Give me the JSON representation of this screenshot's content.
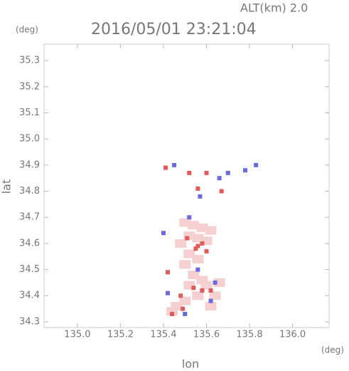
{
  "chart_data": {
    "type": "scatter",
    "altitude_label": "ALT(km) 2.0",
    "title": "2016/05/01 23:21:04",
    "y_unit": "(deg)",
    "x_unit": "(deg)",
    "x_label": "lon",
    "y_label": "lat",
    "xlim": [
      134.845,
      136.17
    ],
    "ylim": [
      34.278,
      35.363
    ],
    "xticks": [
      {
        "value": 135.0,
        "label": "135.0"
      },
      135.2,
      135.4,
      135.6,
      135.8,
      {
        "value": 136.0,
        "label": "136.0"
      }
    ],
    "yticks": [
      34.3,
      34.4,
      34.5,
      34.6,
      34.7,
      34.8,
      34.9,
      {
        "value": 35.0,
        "label": "35.0"
      },
      35.1,
      35.2,
      35.3
    ],
    "series": [
      {
        "color": "#f6d0d0",
        "x": [
          135.5,
          135.54,
          135.58,
          135.62,
          135.52,
          135.56,
          135.6,
          135.48,
          135.52,
          135.56,
          135.5,
          135.54,
          135.58,
          135.6,
          135.52,
          135.56,
          135.64,
          135.62,
          135.66,
          135.5,
          135.46,
          135.44
        ],
        "y": [
          34.68,
          34.67,
          34.66,
          34.65,
          34.63,
          34.62,
          34.61,
          34.6,
          34.56,
          34.54,
          34.52,
          34.48,
          34.46,
          34.44,
          34.44,
          34.4,
          34.4,
          34.36,
          34.45,
          34.38,
          34.36,
          34.34
        ]
      },
      {
        "color": "#e05a5a",
        "x": [
          135.41,
          135.52,
          135.55,
          135.56,
          135.58,
          135.6,
          135.42,
          135.62,
          135.58,
          135.44,
          135.48,
          135.67,
          135.56,
          135.6,
          135.51,
          135.54,
          135.49
        ],
        "y": [
          34.89,
          34.87,
          34.58,
          34.59,
          34.6,
          34.57,
          34.49,
          34.42,
          34.42,
          34.33,
          34.4,
          34.8,
          34.81,
          34.87,
          34.62,
          34.43,
          34.35
        ]
      },
      {
        "color": "#6a6ae0",
        "x": [
          135.45,
          135.78,
          135.83,
          135.66,
          135.42,
          135.4,
          135.52,
          135.62,
          135.5,
          135.7,
          135.57,
          135.64,
          135.56
        ],
        "y": [
          34.9,
          34.88,
          34.9,
          34.85,
          34.41,
          34.64,
          34.7,
          34.38,
          34.33,
          34.87,
          34.78,
          34.45,
          34.5
        ]
      }
    ]
  }
}
